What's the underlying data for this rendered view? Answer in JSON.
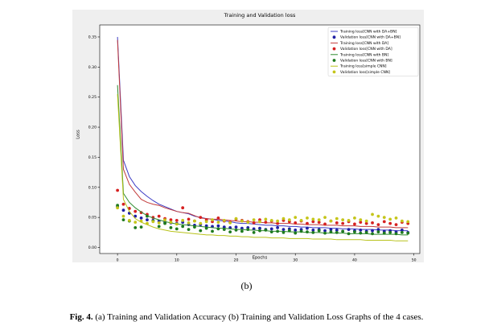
{
  "chart_data": {
    "type": "line",
    "title": "Training and Validation loss",
    "xlabel": "Epochs",
    "ylabel": "Loss",
    "xlim": [
      -3,
      51
    ],
    "ylim": [
      -0.01,
      0.37
    ],
    "xticks": [
      0,
      10,
      20,
      30,
      40,
      50
    ],
    "yticks": [
      0.0,
      0.05,
      0.1,
      0.15,
      0.2,
      0.25,
      0.3,
      0.35
    ],
    "legend_position": "top-right",
    "grid": false,
    "series": [
      {
        "name": "Training loss[CNN with DA+BN]",
        "kind": "line",
        "color": "#3b3bc4",
        "x": [
          0,
          1,
          2,
          3,
          4,
          5,
          6,
          7,
          8,
          9,
          10,
          11,
          12,
          13,
          14,
          15,
          16,
          17,
          18,
          19,
          20,
          21,
          22,
          23,
          24,
          25,
          26,
          27,
          28,
          29,
          30,
          31,
          32,
          33,
          34,
          35,
          36,
          37,
          38,
          39,
          40,
          41,
          42,
          43,
          44,
          45,
          46,
          47,
          48,
          49
        ],
        "y": [
          0.35,
          0.145,
          0.118,
          0.103,
          0.093,
          0.085,
          0.078,
          0.072,
          0.068,
          0.064,
          0.06,
          0.058,
          0.056,
          0.052,
          0.05,
          0.048,
          0.047,
          0.045,
          0.044,
          0.043,
          0.041,
          0.04,
          0.04,
          0.039,
          0.038,
          0.037,
          0.037,
          0.036,
          0.036,
          0.035,
          0.035,
          0.034,
          0.034,
          0.033,
          0.033,
          0.033,
          0.032,
          0.032,
          0.031,
          0.031,
          0.031,
          0.03,
          0.03,
          0.03,
          0.029,
          0.029,
          0.029,
          0.028,
          0.028,
          0.028
        ]
      },
      {
        "name": "Validation loss[CNN with DA+BN]",
        "kind": "scatter",
        "color": "#1f1fa3",
        "x": [
          0,
          1,
          2,
          3,
          4,
          5,
          6,
          7,
          8,
          9,
          10,
          11,
          12,
          13,
          14,
          15,
          16,
          17,
          18,
          19,
          20,
          21,
          22,
          23,
          24,
          25,
          26,
          27,
          28,
          29,
          30,
          31,
          32,
          33,
          34,
          35,
          36,
          37,
          38,
          39,
          40,
          41,
          42,
          43,
          44,
          45,
          46,
          47,
          48,
          49
        ],
        "y": [
          0.068,
          0.062,
          0.057,
          0.052,
          0.049,
          0.046,
          0.045,
          0.044,
          0.042,
          0.041,
          0.04,
          0.042,
          0.038,
          0.037,
          0.038,
          0.036,
          0.035,
          0.036,
          0.034,
          0.033,
          0.034,
          0.032,
          0.033,
          0.031,
          0.032,
          0.03,
          0.031,
          0.033,
          0.03,
          0.031,
          0.029,
          0.03,
          0.032,
          0.029,
          0.03,
          0.028,
          0.03,
          0.029,
          0.027,
          0.03,
          0.028,
          0.029,
          0.027,
          0.028,
          0.03,
          0.027,
          0.028,
          0.026,
          0.029,
          0.025
        ]
      },
      {
        "name": "Training loss[CNN with DA]",
        "kind": "line",
        "color": "#c23b3b",
        "x": [
          0,
          1,
          2,
          3,
          4,
          5,
          6,
          7,
          8,
          9,
          10,
          11,
          12,
          13,
          14,
          15,
          16,
          17,
          18,
          19,
          20,
          21,
          22,
          23,
          24,
          25,
          26,
          27,
          28,
          29,
          30,
          31,
          32,
          33,
          34,
          35,
          36,
          37,
          38,
          39,
          40,
          41,
          42,
          43,
          44,
          45,
          46,
          47,
          48,
          49
        ],
        "y": [
          0.345,
          0.13,
          0.105,
          0.092,
          0.08,
          0.075,
          0.072,
          0.07,
          0.066,
          0.063,
          0.06,
          0.058,
          0.057,
          0.053,
          0.049,
          0.048,
          0.047,
          0.047,
          0.046,
          0.045,
          0.044,
          0.043,
          0.043,
          0.042,
          0.042,
          0.041,
          0.041,
          0.04,
          0.04,
          0.04,
          0.039,
          0.039,
          0.038,
          0.038,
          0.038,
          0.037,
          0.037,
          0.037,
          0.036,
          0.036,
          0.036,
          0.035,
          0.035,
          0.035,
          0.034,
          0.034,
          0.034,
          0.033,
          0.033,
          0.033
        ]
      },
      {
        "name": "Validation loss[CNN with DA]",
        "kind": "scatter",
        "color": "#d62020",
        "x": [
          0,
          1,
          2,
          3,
          4,
          5,
          6,
          7,
          8,
          9,
          10,
          11,
          12,
          13,
          14,
          15,
          16,
          17,
          18,
          19,
          20,
          21,
          22,
          23,
          24,
          25,
          26,
          27,
          28,
          29,
          30,
          31,
          32,
          33,
          34,
          35,
          36,
          37,
          38,
          39,
          40,
          41,
          42,
          43,
          44,
          45,
          46,
          47,
          48,
          49
        ],
        "y": [
          0.095,
          0.072,
          0.065,
          0.06,
          0.058,
          0.055,
          0.05,
          0.052,
          0.048,
          0.046,
          0.045,
          0.066,
          0.047,
          0.044,
          0.05,
          0.046,
          0.043,
          0.049,
          0.044,
          0.042,
          0.047,
          0.045,
          0.043,
          0.041,
          0.046,
          0.042,
          0.044,
          0.04,
          0.045,
          0.043,
          0.041,
          0.044,
          0.04,
          0.043,
          0.042,
          0.039,
          0.044,
          0.041,
          0.04,
          0.043,
          0.039,
          0.042,
          0.04,
          0.041,
          0.038,
          0.043,
          0.04,
          0.038,
          0.042,
          0.04
        ]
      },
      {
        "name": "Training loss[CNN with BN]",
        "kind": "line",
        "color": "#2e8b2e",
        "x": [
          0,
          1,
          2,
          3,
          4,
          5,
          6,
          7,
          8,
          9,
          10,
          11,
          12,
          13,
          14,
          15,
          16,
          17,
          18,
          19,
          20,
          21,
          22,
          23,
          24,
          25,
          26,
          27,
          28,
          29,
          30,
          31,
          32,
          33,
          34,
          35,
          36,
          37,
          38,
          39,
          40,
          41,
          42,
          43,
          44,
          45,
          46,
          47,
          48,
          49
        ],
        "y": [
          0.27,
          0.09,
          0.075,
          0.066,
          0.059,
          0.053,
          0.049,
          0.046,
          0.043,
          0.041,
          0.039,
          0.038,
          0.037,
          0.036,
          0.035,
          0.034,
          0.033,
          0.032,
          0.032,
          0.031,
          0.03,
          0.03,
          0.029,
          0.029,
          0.028,
          0.028,
          0.027,
          0.027,
          0.027,
          0.026,
          0.026,
          0.026,
          0.025,
          0.025,
          0.025,
          0.024,
          0.024,
          0.024,
          0.024,
          0.023,
          0.023,
          0.023,
          0.023,
          0.022,
          0.022,
          0.022,
          0.022,
          0.022,
          0.021,
          0.021
        ]
      },
      {
        "name": "Validation loss[CNN with BN]",
        "kind": "scatter",
        "color": "#1e7a1e",
        "x": [
          0,
          1,
          2,
          3,
          4,
          5,
          6,
          7,
          8,
          9,
          10,
          11,
          12,
          13,
          14,
          15,
          16,
          17,
          18,
          19,
          20,
          21,
          22,
          23,
          24,
          25,
          26,
          27,
          28,
          29,
          30,
          31,
          32,
          33,
          34,
          35,
          36,
          37,
          38,
          39,
          40,
          41,
          42,
          43,
          44,
          45,
          46,
          47,
          48,
          49
        ],
        "y": [
          0.07,
          0.046,
          0.044,
          0.033,
          0.034,
          0.052,
          0.044,
          0.035,
          0.04,
          0.033,
          0.031,
          0.035,
          0.03,
          0.034,
          0.028,
          0.032,
          0.027,
          0.031,
          0.03,
          0.026,
          0.029,
          0.027,
          0.03,
          0.025,
          0.028,
          0.029,
          0.026,
          0.027,
          0.025,
          0.028,
          0.024,
          0.027,
          0.026,
          0.025,
          0.028,
          0.024,
          0.026,
          0.025,
          0.027,
          0.023,
          0.026,
          0.024,
          0.025,
          0.023,
          0.026,
          0.024,
          0.025,
          0.023,
          0.025,
          0.024
        ]
      },
      {
        "name": "Training loss[simple CNN]",
        "kind": "line",
        "color": "#b8c21a",
        "x": [
          0,
          1,
          2,
          3,
          4,
          5,
          6,
          7,
          8,
          9,
          10,
          11,
          12,
          13,
          14,
          15,
          16,
          17,
          18,
          19,
          20,
          21,
          22,
          23,
          24,
          25,
          26,
          27,
          28,
          29,
          30,
          31,
          32,
          33,
          34,
          35,
          36,
          37,
          38,
          39,
          40,
          41,
          42,
          43,
          44,
          45,
          46,
          47,
          48,
          49
        ],
        "y": [
          0.255,
          0.08,
          0.06,
          0.048,
          0.042,
          0.038,
          0.034,
          0.031,
          0.029,
          0.027,
          0.026,
          0.025,
          0.024,
          0.023,
          0.022,
          0.021,
          0.021,
          0.02,
          0.02,
          0.019,
          0.019,
          0.018,
          0.018,
          0.017,
          0.017,
          0.017,
          0.016,
          0.016,
          0.016,
          0.015,
          0.015,
          0.015,
          0.015,
          0.014,
          0.014,
          0.014,
          0.014,
          0.013,
          0.013,
          0.013,
          0.013,
          0.013,
          0.012,
          0.012,
          0.012,
          0.012,
          0.012,
          0.011,
          0.011,
          0.011
        ]
      },
      {
        "name": "Validation loss[simple CNN]",
        "kind": "scatter",
        "color": "#c5c51a",
        "x": [
          0,
          1,
          2,
          3,
          4,
          5,
          6,
          7,
          8,
          9,
          10,
          11,
          12,
          13,
          14,
          15,
          16,
          17,
          18,
          19,
          20,
          21,
          22,
          23,
          24,
          25,
          26,
          27,
          28,
          29,
          30,
          31,
          32,
          33,
          34,
          35,
          36,
          37,
          38,
          39,
          40,
          41,
          42,
          43,
          44,
          45,
          46,
          47,
          48,
          49
        ],
        "y": [
          0.066,
          0.052,
          0.045,
          0.042,
          0.044,
          0.04,
          0.043,
          0.041,
          0.046,
          0.042,
          0.039,
          0.045,
          0.041,
          0.044,
          0.04,
          0.043,
          0.046,
          0.042,
          0.045,
          0.041,
          0.048,
          0.044,
          0.042,
          0.046,
          0.043,
          0.047,
          0.045,
          0.044,
          0.048,
          0.046,
          0.05,
          0.045,
          0.049,
          0.047,
          0.046,
          0.05,
          0.044,
          0.048,
          0.046,
          0.045,
          0.049,
          0.046,
          0.044,
          0.055,
          0.052,
          0.05,
          0.047,
          0.049,
          0.044,
          0.043
        ]
      }
    ]
  },
  "subcaption": "(b)",
  "caption": {
    "label": "Fig. 4.",
    "text": "(a) Training and Validation Accuracy (b) Training and Validation Loss Graphs of the 4 cases."
  }
}
